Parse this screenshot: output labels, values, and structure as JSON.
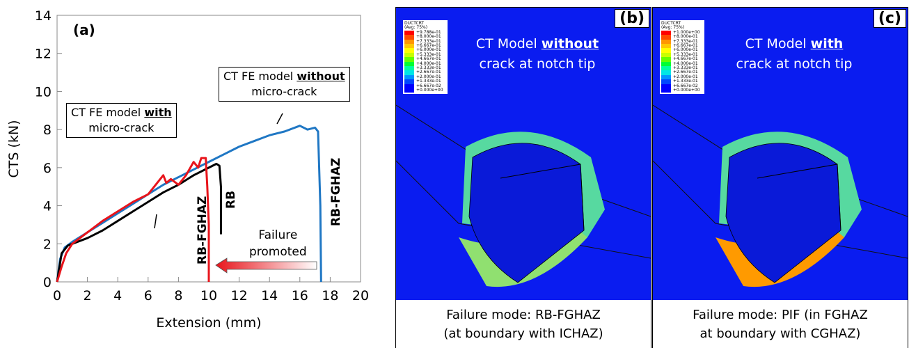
{
  "chart_data": {
    "type": "line",
    "label": "(a)",
    "x_label": "Extension (mm)",
    "y_label": "CTS (kN)",
    "xlim": [
      0,
      20
    ],
    "xticks": [
      0,
      2,
      4,
      6,
      8,
      10,
      12,
      14,
      16,
      18,
      20
    ],
    "ylim": [
      0,
      14
    ],
    "yticks": [
      0,
      2,
      4,
      6,
      8,
      10,
      12,
      14
    ],
    "series": [
      {
        "color": "#1f77c4",
        "x": [
          0,
          0.2,
          0.5,
          1,
          2,
          3,
          4,
          5,
          6,
          7,
          8,
          9,
          10,
          11,
          12,
          13,
          14,
          15,
          16,
          16.5,
          17,
          17.2,
          17.35,
          17.4
        ],
        "values": [
          0,
          1.2,
          1.8,
          2.1,
          2.6,
          3.1,
          3.6,
          4.1,
          4.6,
          5.1,
          5.5,
          5.9,
          6.3,
          6.7,
          7.1,
          7.4,
          7.7,
          7.9,
          8.2,
          8.0,
          8.1,
          7.9,
          4,
          0
        ]
      },
      {
        "color": "#000000",
        "x": [
          0,
          0.3,
          0.7,
          1,
          2,
          3,
          4,
          5,
          6,
          7,
          8,
          9,
          10,
          10.5,
          10.7,
          10.8,
          10.8
        ],
        "values": [
          0,
          1.5,
          1.9,
          2.0,
          2.3,
          2.7,
          3.2,
          3.7,
          4.2,
          4.7,
          5.1,
          5.6,
          6.0,
          6.2,
          6.1,
          5,
          2.5
        ]
      },
      {
        "color": "#e8141b",
        "x": [
          0,
          0.3,
          0.6,
          1,
          2,
          3,
          4,
          5,
          6,
          7,
          7.2,
          7.5,
          8,
          8.5,
          9,
          9.3,
          9.5,
          9.8,
          9.9,
          10,
          10,
          10
        ],
        "values": [
          0,
          0.8,
          1.5,
          2.0,
          2.6,
          3.2,
          3.7,
          4.2,
          4.6,
          5.6,
          5.2,
          5.4,
          5.1,
          5.6,
          6.3,
          6.0,
          6.5,
          6.5,
          5,
          3,
          1,
          0
        ]
      }
    ],
    "annotations": {
      "with_box": [
        "CT FE model",
        "with",
        "micro-crack"
      ],
      "without_box": [
        "CT FE model",
        "without",
        "micro-crack"
      ],
      "rb_fghaz_left": "RB-FGHAZ",
      "rb": "RB",
      "rb_fghaz_right": "RB-FGHAZ",
      "failure": [
        "Failure",
        "promoted"
      ]
    }
  },
  "panels": [
    {
      "label": "(b)",
      "title": [
        "CT Model",
        "without",
        "crack at notch tip"
      ],
      "legend_title": [
        "DUCTCRT",
        "(Avg: 75%)"
      ],
      "legend_values": [
        "+9.788e-01",
        "+8.000e-01",
        "+7.333e-01",
        "+6.667e-01",
        "+6.000e-01",
        "+5.333e-01",
        "+4.667e-01",
        "+4.000e-01",
        "+3.333e-01",
        "+2.667e-01",
        "+2.000e-01",
        "+1.333e-01",
        "+6.667e-02",
        "+0.000e+00"
      ],
      "caption": [
        "Failure mode: RB-FGHAZ",
        "(at boundary with ICHAZ)"
      ]
    },
    {
      "label": "(c)",
      "title": [
        "CT Model",
        "with",
        "crack at notch tip"
      ],
      "legend_title": [
        "DUCTCRT",
        "(Avg: 75%)"
      ],
      "legend_values": [
        "+1.000e+00",
        "+8.000e-01",
        "+7.333e-01",
        "+6.667e-01",
        "+6.000e-01",
        "+5.333e-01",
        "+4.667e-01",
        "+4.000e-01",
        "+3.333e-01",
        "+2.667e-01",
        "+2.000e-01",
        "+1.333e-01",
        "+6.667e-02",
        "+0.000e+00"
      ],
      "caption": [
        "Failure mode: PIF (in FGHAZ",
        "at boundary with CGHAZ)"
      ]
    }
  ]
}
